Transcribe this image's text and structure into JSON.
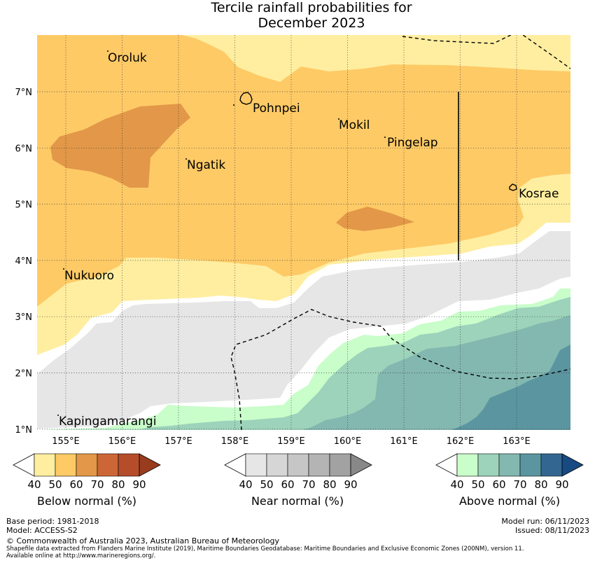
{
  "title": {
    "line1": "Tercile rainfall probabilities for",
    "line2": "December 2023"
  },
  "axes": {
    "lon_ticks": [
      "155°E",
      "156°E",
      "157°E",
      "158°E",
      "159°E",
      "160°E",
      "161°E",
      "162°E",
      "163°E"
    ],
    "lat_ticks": [
      "7°N",
      "6°N",
      "5°N",
      "4°N",
      "3°N",
      "2°N",
      "1°N"
    ]
  },
  "places": [
    {
      "name": "Oroluk"
    },
    {
      "name": "Pohnpei"
    },
    {
      "name": "Mokil"
    },
    {
      "name": "Pingelap"
    },
    {
      "name": "Ngatik"
    },
    {
      "name": "Kosrae"
    },
    {
      "name": "Nukuoro"
    },
    {
      "name": "Kapingamarangi"
    }
  ],
  "colorbars": [
    {
      "label": "Below normal (%)",
      "ticks": [
        "40",
        "50",
        "60",
        "70",
        "80",
        "90"
      ],
      "colors": [
        "#ffeea0",
        "#feca66",
        "#e29848",
        "#cd6636",
        "#b54d2a",
        "#993c1e"
      ]
    },
    {
      "label": "Near normal (%)",
      "ticks": [
        "40",
        "50",
        "60",
        "70",
        "80",
        "90"
      ],
      "colors": [
        "#e6e6e6",
        "#d6d6d6",
        "#c6c6c6",
        "#b4b4b4",
        "#a2a2a2",
        "#888888"
      ]
    },
    {
      "label": "Above normal (%)",
      "ticks": [
        "40",
        "50",
        "60",
        "70",
        "80",
        "90"
      ],
      "colors": [
        "#c9fdca",
        "#9dd3bb",
        "#83b8b0",
        "#5b96a0",
        "#336792",
        "#174a82"
      ]
    }
  ],
  "footer": {
    "base_period": "Base period: 1981-2018",
    "model": "Model: ACCESS-S2",
    "model_run": "Model run: 06/11/2023",
    "issued": "Issued: 08/11/2023",
    "copyright": "© Commonwealth of Australia 2023, Australian Bureau of Meteorology",
    "shapefile": "Shapefile data extracted from Flanders Marine Institute (2019), Maritime Boundaries Geodatabase: Maritime Boundaries and Exclusive Economic Zones (200NM), version 11.",
    "available": "Available online at http://www.marineregions.org/."
  }
}
